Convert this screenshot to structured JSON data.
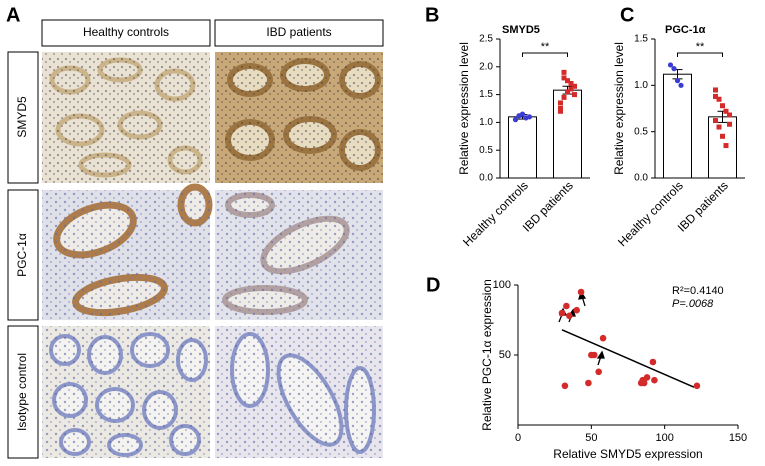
{
  "panel_a": {
    "label": "A",
    "columns": [
      "Healthy controls",
      "IBD patients"
    ],
    "rows": [
      "SMYD5",
      "PGC-1α",
      "Isotype control"
    ]
  },
  "chart_data": [
    {
      "type": "bar",
      "label": "B",
      "title": "SMYD5",
      "y_label": "Relative expression level",
      "categories": [
        "Healthy controls",
        "IBD patients"
      ],
      "values": [
        1.1,
        1.58
      ],
      "errors": [
        0.04,
        0.07
      ],
      "point_colors": [
        "#3b3bd6",
        "#d42a2a"
      ],
      "points": [
        [
          1.05,
          1.12,
          1.15,
          1.08,
          1.1
        ],
        [
          1.2,
          1.9,
          1.75,
          1.6,
          1.5,
          1.35,
          1.45,
          1.55,
          1.7,
          1.65,
          1.25,
          1.8
        ]
      ],
      "annotation": "**",
      "ylim": [
        0,
        2.5
      ],
      "yticks": [
        {
          "value": 0,
          "label": "0.0"
        },
        {
          "value": 0.5,
          "label": "0.5"
        },
        {
          "value": 1,
          "label": "1.0"
        },
        {
          "value": 1.5,
          "label": "1.5"
        },
        {
          "value": 2,
          "label": "2.0"
        },
        {
          "value": 2.5,
          "label": "2.5"
        }
      ]
    },
    {
      "type": "bar",
      "label": "C",
      "title": "PGC-1α",
      "y_label": "Relative expression level",
      "categories": [
        "Healthy controls",
        "IBD patients"
      ],
      "values": [
        1.12,
        0.66
      ],
      "errors": [
        0.05,
        0.06
      ],
      "point_colors": [
        "#3b3bd6",
        "#d42a2a"
      ],
      "points": [
        [
          1.22,
          1.18,
          1.05,
          1.0
        ],
        [
          0.95,
          0.85,
          0.78,
          0.72,
          0.68,
          0.62,
          0.55,
          0.45,
          0.35,
          0.58,
          0.88
        ]
      ],
      "annotation": "**",
      "ylim": [
        0,
        1.5
      ],
      "yticks": [
        {
          "value": 0,
          "label": "0.0"
        },
        {
          "value": 0.5,
          "label": "0.5"
        },
        {
          "value": 1,
          "label": "1.0"
        },
        {
          "value": 1.5,
          "label": "1.5"
        }
      ]
    },
    {
      "type": "scatter",
      "label": "D",
      "x_label": "Relative SMYD5 expression",
      "y_label": "Relative PGC-1α expression",
      "color": "#d42a2a",
      "x": [
        30,
        33,
        35,
        40,
        43,
        32,
        48,
        50,
        52,
        58,
        55,
        84,
        85,
        86,
        88,
        92,
        93,
        122
      ],
      "y": [
        80,
        85,
        78,
        82,
        95,
        28,
        30,
        50,
        50,
        62,
        38,
        30,
        32,
        30,
        34,
        45,
        32,
        28
      ],
      "regression_line": {
        "x": [
          30,
          120
        ],
        "y": [
          68,
          27
        ]
      },
      "annotations": [
        "R²=0.4140",
        "P=.0068"
      ],
      "xlim": [
        0,
        150
      ],
      "xticks": [
        0,
        50,
        100,
        150
      ],
      "ylim": [
        0,
        100
      ],
      "yticks": [
        50,
        100
      ]
    }
  ]
}
